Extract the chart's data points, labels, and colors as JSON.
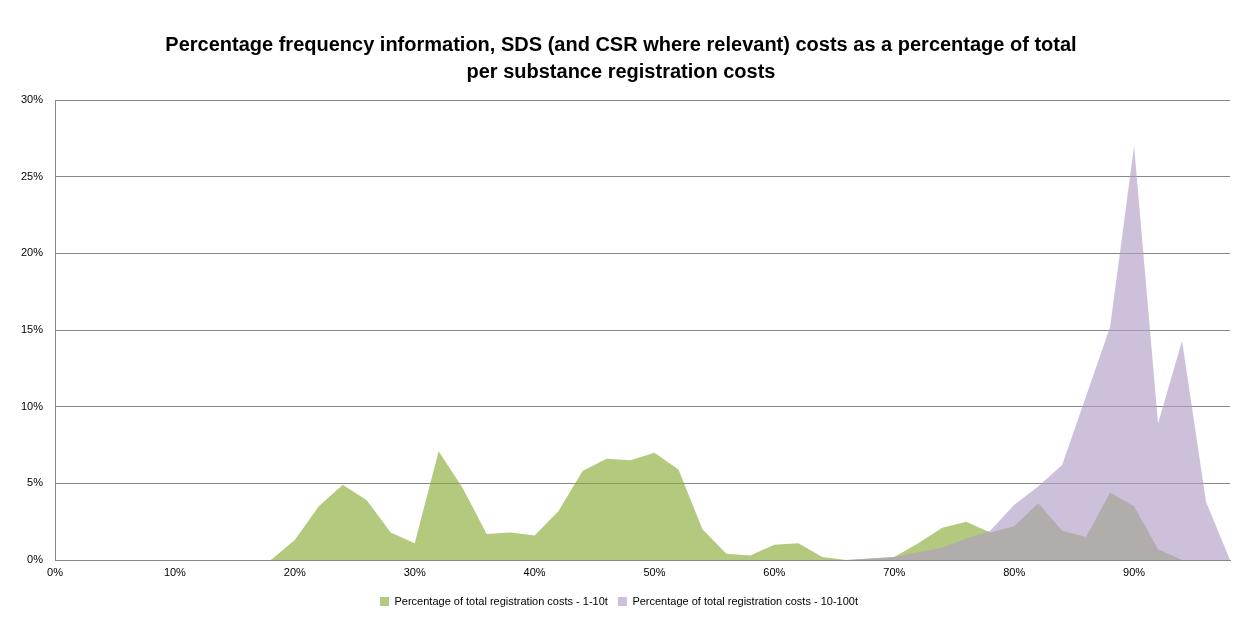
{
  "chart_data": {
    "type": "area",
    "title": "Percentage frequency information, SDS (and CSR where relevant) costs as a percentage of total per substance registration costs",
    "series": [
      {
        "name": "Percentage of total registration costs - 1-10t",
        "color": "#b3c97e",
        "x": [
          18,
          20,
          22,
          24,
          26,
          28,
          30,
          32,
          34,
          36,
          38,
          40,
          42,
          44,
          46,
          48,
          50,
          52,
          54,
          56,
          58,
          60,
          62,
          64,
          66,
          68,
          70,
          72,
          74,
          76,
          78,
          80,
          82,
          84,
          86,
          88,
          90,
          92,
          94
        ],
        "values": [
          0,
          1.3,
          3.5,
          4.9,
          3.9,
          1.8,
          1.1,
          7.1,
          4.7,
          1.7,
          1.8,
          1.6,
          3.2,
          5.8,
          6.6,
          6.5,
          7.0,
          5.9,
          2.0,
          0.4,
          0.3,
          1.0,
          1.1,
          0.2,
          0,
          0.1,
          0.2,
          1.1,
          2.1,
          2.5,
          1.8,
          2.2,
          3.7,
          1.9,
          1.5,
          4.4,
          3.5,
          0.7,
          0
        ]
      },
      {
        "name": "Percentage of total registration costs - 10-100t",
        "color": "#ccc0da",
        "x": [
          66,
          68,
          70,
          72,
          74,
          76,
          78,
          80,
          82,
          84,
          86,
          88,
          90,
          92,
          94,
          96,
          98
        ],
        "values": [
          0,
          0.1,
          0.2,
          0.5,
          0.8,
          1.4,
          1.9,
          3.6,
          4.8,
          6.2,
          10.7,
          15.2,
          27.0,
          8.9,
          14.3,
          3.8,
          0
        ]
      }
    ],
    "xlim": [
      0,
      98
    ],
    "xticks": [
      {
        "value": 0,
        "label": "0%"
      },
      {
        "value": 10,
        "label": "10%"
      },
      {
        "value": 20,
        "label": "20%"
      },
      {
        "value": 30,
        "label": "30%"
      },
      {
        "value": 40,
        "label": "40%"
      },
      {
        "value": 50,
        "label": "50%"
      },
      {
        "value": 60,
        "label": "60%"
      },
      {
        "value": 70,
        "label": "70%"
      },
      {
        "value": 80,
        "label": "80%"
      },
      {
        "value": 90,
        "label": "90%"
      }
    ],
    "ylim": [
      0,
      30
    ],
    "yticks": [
      {
        "value": 0,
        "label": "0%"
      },
      {
        "value": 5,
        "label": "5%"
      },
      {
        "value": 10,
        "label": "10%"
      },
      {
        "value": 15,
        "label": "15%"
      },
      {
        "value": 20,
        "label": "20%"
      },
      {
        "value": 25,
        "label": "25%"
      },
      {
        "value": 30,
        "label": "30%"
      }
    ],
    "grid": "y",
    "legend": "bottom"
  }
}
